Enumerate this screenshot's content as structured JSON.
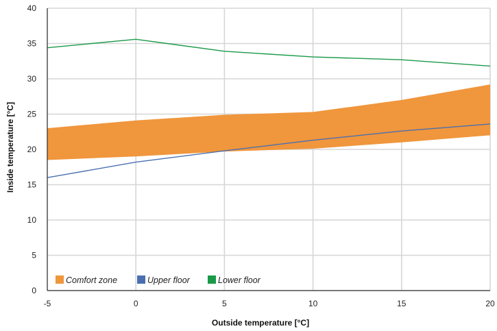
{
  "chart_data": {
    "type": "area",
    "xlabel": "Outside temperature [°C]",
    "ylabel": "Inside temperature [°C]",
    "x": [
      -5,
      0,
      5,
      10,
      15,
      20
    ],
    "xlim": [
      -5,
      20
    ],
    "ylim": [
      0,
      40
    ],
    "xticks": [
      "-5",
      "0",
      "5",
      "10",
      "15",
      "20"
    ],
    "yticks": [
      "0",
      "5",
      "10",
      "15",
      "20",
      "25",
      "30",
      "35",
      "40"
    ],
    "grid": true,
    "legend_position": "bottom-left",
    "band": {
      "name": "Comfort zone",
      "color": "#f0963c",
      "lower": [
        18.5,
        19.0,
        19.7,
        20.1,
        21.0,
        22.0
      ],
      "upper": [
        23.0,
        24.1,
        24.9,
        25.3,
        27.0,
        29.2
      ]
    },
    "series": [
      {
        "name": "Upper floor",
        "color": "#4a6fb0",
        "values": [
          16.0,
          18.2,
          19.8,
          21.3,
          22.6,
          23.6
        ]
      },
      {
        "name": "Lower floor",
        "color": "#1a9a48",
        "values": [
          34.4,
          35.6,
          33.9,
          33.1,
          32.7,
          31.8
        ]
      }
    ]
  }
}
